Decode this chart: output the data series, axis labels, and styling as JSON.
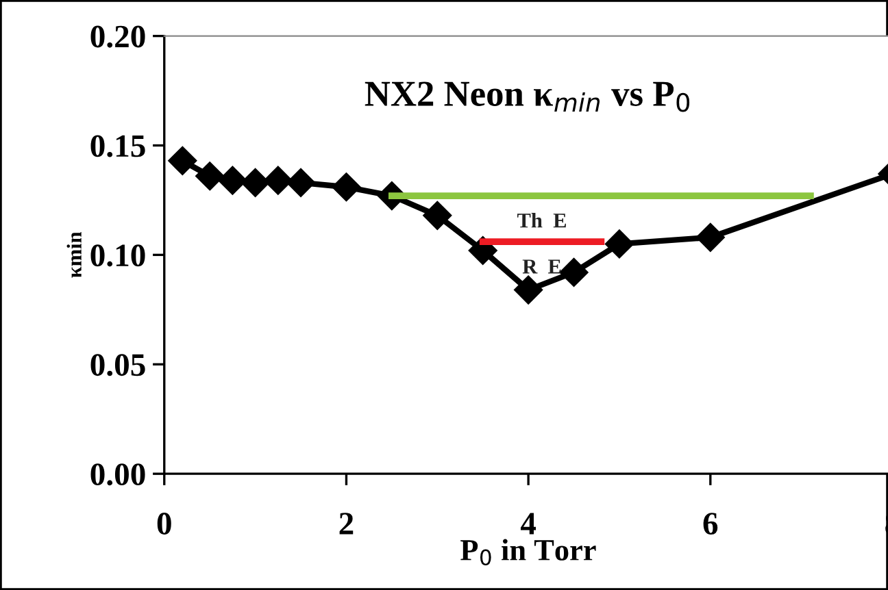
{
  "chart_data": {
    "type": "line",
    "title": "NX2 Neon κ$_{min}$ vs P$_{0}$",
    "xlabel": "P$_{0}$ in Torr",
    "ylabel": "κmin",
    "xlim": [
      0,
      8
    ],
    "xticks": [
      0,
      2,
      4,
      6,
      8
    ],
    "ylim": [
      0,
      0.2
    ],
    "yticks": [
      {
        "value": 0,
        "label": "0.00"
      },
      {
        "value": 0.05,
        "label": "0.05"
      },
      {
        "value": 0.1,
        "label": "0.10"
      },
      {
        "value": 0.15,
        "label": "0.15"
      },
      {
        "value": 0.2,
        "label": "0.20"
      }
    ],
    "grid": false,
    "legend": false,
    "series": [
      {
        "color": "#000000",
        "marker": "diamond",
        "x": [
          0.2,
          0.5,
          0.75,
          1.0,
          1.25,
          1.5,
          2.0,
          2.5,
          3.0,
          3.5,
          4.0,
          4.5,
          5.0,
          6.0,
          8.0
        ],
        "values": [
          0.143,
          0.136,
          0.134,
          0.133,
          0.134,
          0.133,
          0.131,
          0.127,
          0.118,
          0.102,
          0.084,
          0.092,
          0.105,
          0.108,
          0.137
        ]
      },
      {
        "name": "Th  E",
        "color": "#8cc63f",
        "marker": "none",
        "x": [
          2.5,
          7.1
        ],
        "values": [
          0.127,
          0.127
        ]
      },
      {
        "name": "R  E",
        "color": "#ed1c24",
        "marker": "none",
        "x": [
          3.5,
          4.8
        ],
        "values": [
          0.106,
          0.106
        ]
      }
    ]
  }
}
